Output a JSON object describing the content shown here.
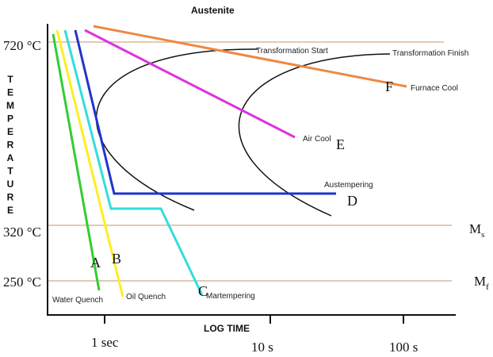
{
  "title": "Austenite",
  "y_axis_label": "TEMPERATURE",
  "x_axis_label": "LOG TIME",
  "temperature_levels": [
    "720 °C",
    "320 °C",
    "250 °C"
  ],
  "time_ticks": [
    "1 sec",
    "10 s",
    "100 s"
  ],
  "ms_label": "M",
  "ms_sub": "s",
  "mf_label": "M",
  "mf_sub": "f",
  "curve_labels": {
    "start": "Transformation Start",
    "finish": "Transformation Finish"
  },
  "paths": [
    {
      "letter": "A",
      "name": "Water Quench",
      "color": "#33cc33"
    },
    {
      "letter": "B",
      "name": "Oil Quench",
      "color": "#ffee22"
    },
    {
      "letter": "C",
      "name": "Martempering",
      "color": "#33dddd"
    },
    {
      "letter": "D",
      "name": "Austempering",
      "color": "#2233cc"
    },
    {
      "letter": "E",
      "name": "Air Cool",
      "color": "#dd33dd"
    },
    {
      "letter": "F",
      "name": "Furnace Cool",
      "color": "#ee8844"
    }
  ],
  "colors": {
    "reference_lines": "#d9b89a",
    "axes": "#111111",
    "curves": "#111111"
  }
}
